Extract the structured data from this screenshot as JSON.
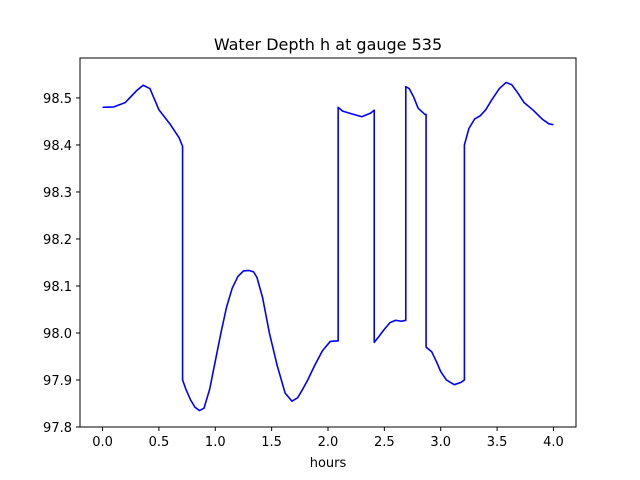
{
  "chart_data": {
    "type": "line",
    "title": "Water Depth h at gauge 535",
    "xlabel": "hours",
    "ylabel": "",
    "xlim": [
      -0.2,
      4.2
    ],
    "ylim": [
      97.8,
      98.585
    ],
    "xticks": [
      0.0,
      0.5,
      1.0,
      1.5,
      2.0,
      2.5,
      3.0,
      3.5,
      4.0
    ],
    "xtick_labels": [
      "0.0",
      "0.5",
      "1.0",
      "1.5",
      "2.0",
      "2.5",
      "3.0",
      "3.5",
      "4.0"
    ],
    "yticks": [
      97.8,
      97.9,
      98.0,
      98.1,
      98.2,
      98.3,
      98.4,
      98.5
    ],
    "ytick_labels": [
      "97.8",
      "97.9",
      "98.0",
      "98.1",
      "98.2",
      "98.3",
      "98.4",
      "98.5"
    ],
    "grid": false,
    "legend": "none",
    "series": [
      {
        "color": "#0000ff",
        "x": [
          0.0,
          0.1,
          0.2,
          0.3,
          0.36,
          0.42,
          0.5,
          0.6,
          0.68,
          0.71,
          0.71,
          0.74,
          0.78,
          0.82,
          0.86,
          0.9,
          0.95,
          1.0,
          1.05,
          1.1,
          1.15,
          1.2,
          1.25,
          1.3,
          1.34,
          1.37,
          1.42,
          1.48,
          1.55,
          1.62,
          1.68,
          1.73,
          1.77,
          1.82,
          1.88,
          1.95,
          2.02,
          2.07,
          2.09,
          2.09,
          2.13,
          2.2,
          2.3,
          2.38,
          2.41,
          2.41,
          2.45,
          2.5,
          2.55,
          2.6,
          2.65,
          2.69,
          2.69,
          2.72,
          2.76,
          2.8,
          2.86,
          2.87,
          2.87,
          2.92,
          2.96,
          3.0,
          3.05,
          3.12,
          3.18,
          3.21,
          3.21,
          3.25,
          3.3,
          3.35,
          3.4,
          3.45,
          3.52,
          3.58,
          3.63,
          3.68,
          3.74,
          3.82,
          3.9,
          3.96,
          4.0
        ],
        "y": [
          98.48,
          98.481,
          98.49,
          98.515,
          98.527,
          98.52,
          98.475,
          98.444,
          98.415,
          98.397,
          97.9,
          97.88,
          97.858,
          97.842,
          97.835,
          97.84,
          97.88,
          97.94,
          98.0,
          98.055,
          98.095,
          98.12,
          98.132,
          98.133,
          98.13,
          98.118,
          98.075,
          98.0,
          97.93,
          97.872,
          97.855,
          97.862,
          97.878,
          97.9,
          97.93,
          97.962,
          97.982,
          97.983,
          97.983,
          98.48,
          98.472,
          98.467,
          98.46,
          98.468,
          98.474,
          97.98,
          97.992,
          98.008,
          98.022,
          98.027,
          98.025,
          98.027,
          98.524,
          98.52,
          98.502,
          98.478,
          98.465,
          98.465,
          97.97,
          97.96,
          97.94,
          97.918,
          97.9,
          97.89,
          97.895,
          97.9,
          98.4,
          98.435,
          98.455,
          98.462,
          98.475,
          98.495,
          98.52,
          98.533,
          98.528,
          98.512,
          98.49,
          98.474,
          98.455,
          98.445,
          98.443
        ]
      }
    ]
  }
}
